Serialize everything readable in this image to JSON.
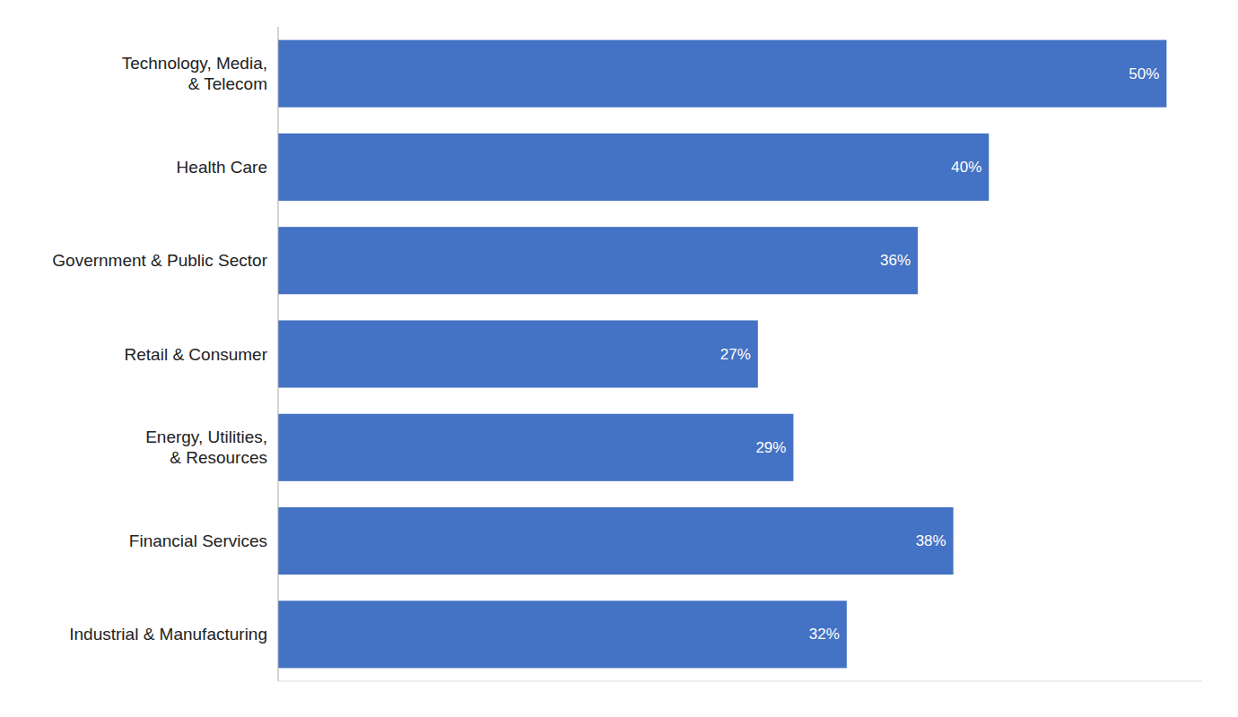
{
  "chart_data": {
    "type": "bar",
    "orientation": "horizontal",
    "categories": [
      "Industrial & Manufacturing",
      "Financial Services",
      "Energy, Utilities,\n& Resources",
      "Retail & Consumer",
      "Government & Public Sector",
      "Health Care",
      "Technology, Media,\n& Telecom"
    ],
    "values": [
      32,
      38,
      29,
      27,
      36,
      40,
      50
    ],
    "value_labels": [
      "32%",
      "38%",
      "29%",
      "27%",
      "36%",
      "40%",
      "50%"
    ],
    "color": "#4472C4",
    "xlim": [
      0,
      52
    ],
    "xticks": [],
    "data_labels": true,
    "tick_labels": "y",
    "grid": false
  }
}
